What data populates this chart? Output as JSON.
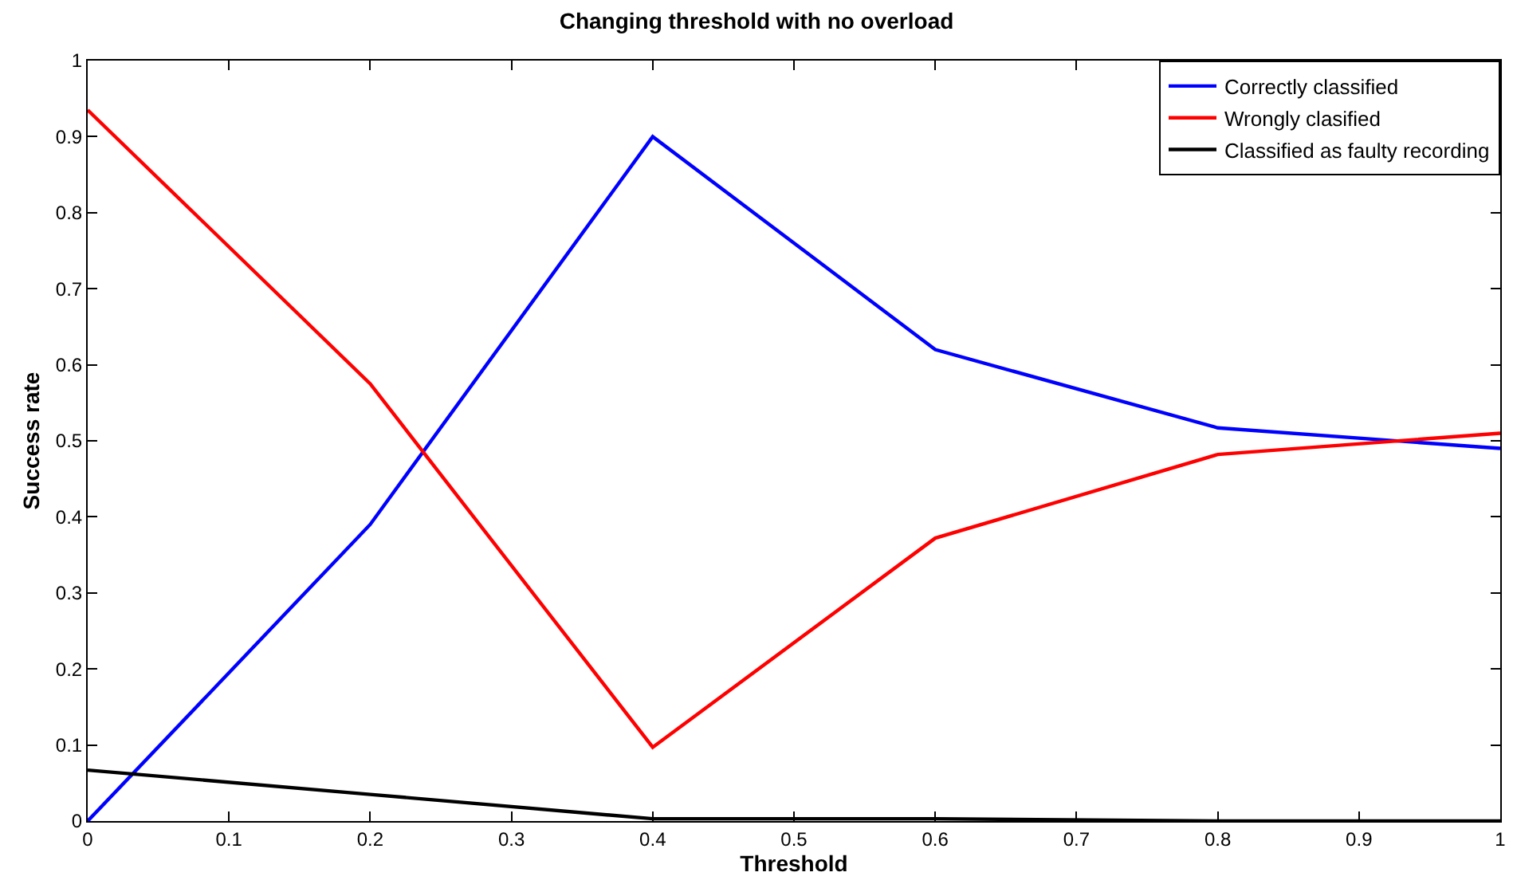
{
  "chart_data": {
    "type": "line",
    "title": "Changing threshold with no overload",
    "xlabel": "Threshold",
    "ylabel": "Success rate",
    "x": [
      0,
      0.2,
      0.4,
      0.6,
      0.8,
      1
    ],
    "series": [
      {
        "name": "Correctly classified",
        "color": "#0000ff",
        "values": [
          0,
          0.39,
          0.9,
          0.62,
          0.517,
          0.49
        ]
      },
      {
        "name": "Wrongly clasified",
        "color": "#ff0000",
        "values": [
          0.935,
          0.575,
          0.097,
          0.372,
          0.482,
          0.51
        ]
      },
      {
        "name": "Classified as faulty recording",
        "color": "#000000",
        "values": [
          0.067,
          0.035,
          0.003,
          0.003,
          0,
          0
        ]
      }
    ],
    "xlim": [
      0,
      1
    ],
    "xticks": [
      0,
      0.1,
      0.2,
      0.3,
      0.4,
      0.5,
      0.6,
      0.7,
      0.8,
      0.9,
      1
    ],
    "ylim": [
      0,
      1
    ],
    "yticks": [
      0,
      0.1,
      0.2,
      0.3,
      0.4,
      0.5,
      0.6,
      0.7,
      0.8,
      0.9,
      1
    ],
    "grid": false,
    "legend": "top right",
    "marker": "none",
    "line_style": "solid"
  }
}
